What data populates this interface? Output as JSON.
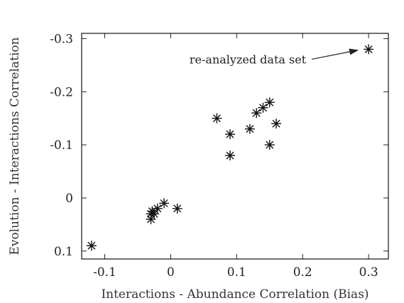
{
  "chart_data": {
    "type": "scatter",
    "xlabel": "Interactions - Abundance Correlation (Bias)",
    "ylabel": "Evolution - Interactions Correlation",
    "xlim": [
      -0.135,
      0.33
    ],
    "ylim": [
      0.115,
      -0.31
    ],
    "y_axis_inverted": true,
    "grid": false,
    "legend": "none",
    "marker": "asterisk",
    "x_ticks": [
      {
        "value": -0.1,
        "label": "-0.1"
      },
      {
        "value": 0,
        "label": "0"
      },
      {
        "value": 0.1,
        "label": "0.1"
      },
      {
        "value": 0.2,
        "label": "0.2"
      },
      {
        "value": 0.3,
        "label": "0.3"
      }
    ],
    "y_ticks": [
      {
        "value": -0.3,
        "label": "-0.3"
      },
      {
        "value": -0.2,
        "label": "-0.2"
      },
      {
        "value": -0.1,
        "label": "-0.1"
      },
      {
        "value": 0,
        "label": "0"
      },
      {
        "value": 0.1,
        "label": "0.1"
      }
    ],
    "points": [
      {
        "x": -0.12,
        "y": 0.09
      },
      {
        "x": -0.03,
        "y": 0.04
      },
      {
        "x": -0.03,
        "y": 0.03
      },
      {
        "x": -0.028,
        "y": 0.025
      },
      {
        "x": -0.025,
        "y": 0.03
      },
      {
        "x": -0.02,
        "y": 0.02
      },
      {
        "x": -0.01,
        "y": 0.01
      },
      {
        "x": 0.01,
        "y": 0.02
      },
      {
        "x": 0.07,
        "y": -0.15
      },
      {
        "x": 0.09,
        "y": -0.12
      },
      {
        "x": 0.09,
        "y": -0.08
      },
      {
        "x": 0.12,
        "y": -0.13
      },
      {
        "x": 0.13,
        "y": -0.16
      },
      {
        "x": 0.14,
        "y": -0.17
      },
      {
        "x": 0.15,
        "y": -0.18
      },
      {
        "x": 0.15,
        "y": -0.1
      },
      {
        "x": 0.16,
        "y": -0.14
      },
      {
        "x": 0.3,
        "y": -0.28
      }
    ],
    "annotations": [
      {
        "text": "re-analyzed data set",
        "x": 0.3,
        "y": -0.28
      }
    ]
  }
}
